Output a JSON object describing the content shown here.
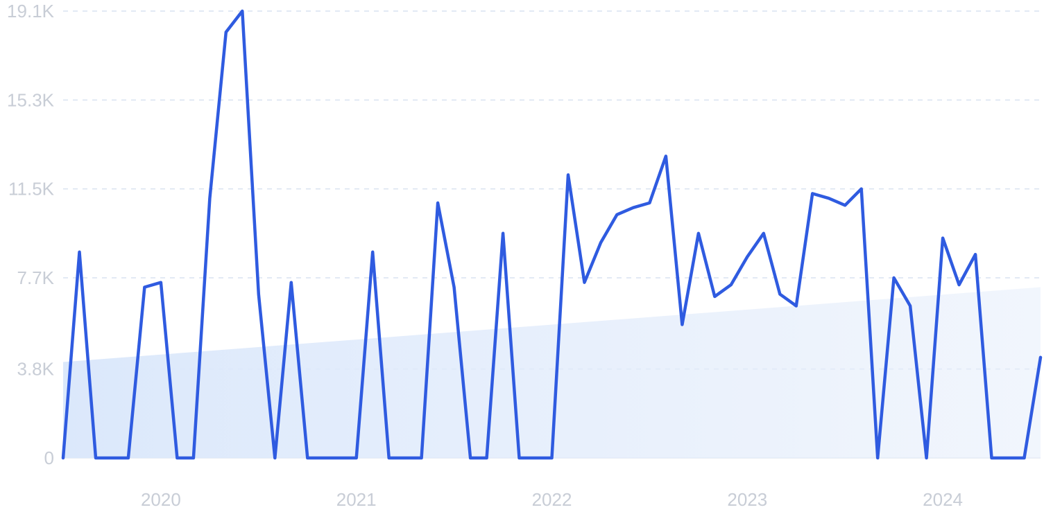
{
  "chart_data": {
    "type": "line",
    "title": "",
    "xlabel": "",
    "ylabel": "",
    "y_ticks": [
      "0",
      "3.8K",
      "7.7K",
      "11.5K",
      "15.3K",
      "19.1K"
    ],
    "y_tick_values": [
      0,
      3800,
      7700,
      11500,
      15300,
      19100
    ],
    "ylim": [
      0,
      19100
    ],
    "x_ticks": [
      "2020",
      "2021",
      "2022",
      "2023",
      "2024"
    ],
    "x_tick_values": [
      "2020-01",
      "2021-01",
      "2022-01",
      "2023-01",
      "2024-01"
    ],
    "xlim": [
      "2019-07",
      "2024-07"
    ],
    "grid": "horizontal dashed",
    "colors": {
      "line": "#2f5be0",
      "trend_fill": "#dbe8fb",
      "grid": "#d9e2f0",
      "tick_text": "#c8cdd6"
    },
    "trend": {
      "start": [
        "2019-07",
        4100
      ],
      "end": [
        "2024-07",
        7300
      ]
    },
    "series": [
      {
        "x": [
          "2019-07",
          "2019-08",
          "2019-09",
          "2019-10",
          "2019-11",
          "2019-12",
          "2020-01",
          "2020-02",
          "2020-03",
          "2020-04",
          "2020-05",
          "2020-06",
          "2020-07",
          "2020-08",
          "2020-09",
          "2020-10",
          "2020-11",
          "2020-12",
          "2021-01",
          "2021-02",
          "2021-03",
          "2021-04",
          "2021-05",
          "2021-06",
          "2021-07",
          "2021-08",
          "2021-09",
          "2021-10",
          "2021-11",
          "2021-12",
          "2022-01",
          "2022-02",
          "2022-03",
          "2022-04",
          "2022-05",
          "2022-06",
          "2022-07",
          "2022-08",
          "2022-09",
          "2022-10",
          "2022-11",
          "2022-12",
          "2023-01",
          "2023-02",
          "2023-03",
          "2023-04",
          "2023-05",
          "2023-06",
          "2023-07",
          "2023-08",
          "2023-09",
          "2023-10",
          "2023-11",
          "2023-12",
          "2024-01",
          "2024-02",
          "2024-03",
          "2024-04",
          "2024-05",
          "2024-06",
          "2024-07"
        ],
        "values": [
          0,
          8800,
          0,
          0,
          0,
          7300,
          7500,
          0,
          0,
          11100,
          18200,
          19100,
          7000,
          0,
          7500,
          0,
          0,
          0,
          0,
          8800,
          0,
          0,
          0,
          10900,
          7300,
          0,
          0,
          9600,
          0,
          0,
          0,
          12100,
          7500,
          9200,
          10400,
          10700,
          10900,
          12900,
          5700,
          9600,
          6900,
          7400,
          8600,
          9600,
          7000,
          6500,
          11300,
          11100,
          10800,
          11500,
          0,
          7700,
          6500,
          0,
          9400,
          7400,
          8700,
          0,
          0,
          0,
          4300
        ]
      }
    ]
  }
}
